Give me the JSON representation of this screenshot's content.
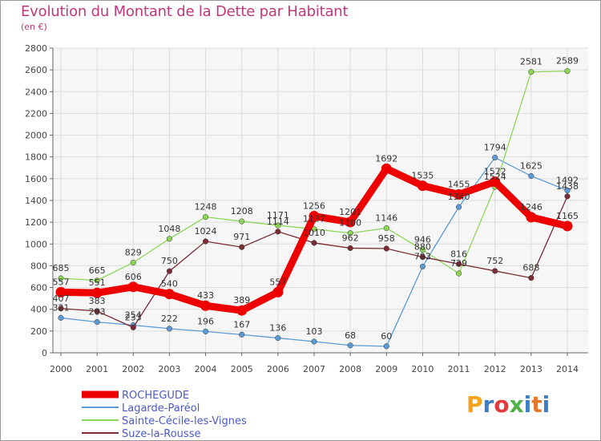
{
  "title": "Evolution du Montant de la Dette par Habitant",
  "subtitle": "(en €)",
  "logo_text": "Proxiti",
  "logo_colors": [
    "#f7a21c",
    "#3c7fc6",
    "#e23b3b",
    "#52b24a",
    "#3c7fc6",
    "#e5762c",
    "#3c7fc6"
  ],
  "chart_data": {
    "type": "line",
    "title": "Evolution du Montant de la Dette par Habitant",
    "ylabel": "(en €)",
    "xlabel": "",
    "ylim": [
      0,
      2800
    ],
    "yticks": [
      0,
      200,
      400,
      600,
      800,
      1000,
      1200,
      1400,
      1600,
      1800,
      2000,
      2200,
      2400,
      2600,
      2800
    ],
    "grid": true,
    "legend_position": "bottom-left",
    "x": [
      "2000",
      "2001",
      "2002",
      "2003",
      "2004",
      "2005",
      "2006",
      "2007",
      "2008",
      "2009",
      "2010",
      "2011",
      "2012",
      "2013",
      "2014"
    ],
    "series": [
      {
        "name": "Lagarde-Paréol",
        "color": "#5b9bd5",
        "values": [
          321,
          283,
          254,
          222,
          196,
          167,
          136,
          103,
          68,
          60,
          793,
          1340,
          1794,
          1625,
          1492
        ],
        "labels": [
          "321",
          "283",
          "254",
          "222",
          "196",
          "167",
          "136",
          "103",
          "68",
          "60",
          "793",
          "1340",
          "1794",
          "1625",
          "1492"
        ]
      },
      {
        "name": "Sainte-Cécile-les-Vignes",
        "color": "#8ed65a",
        "values": [
          685,
          665,
          829,
          1048,
          1248,
          1208,
          1171,
          1137,
          1100,
          1146,
          946,
          729,
          1524,
          2581,
          2589
        ],
        "labels": [
          "685",
          "665",
          "829",
          "1048",
          "1248",
          "1208",
          "1171",
          "1137",
          "1100",
          "1146",
          "946",
          "729",
          "1524",
          "2581",
          "2589"
        ]
      },
      {
        "name": "Suze-la-Rousse",
        "color": "#7a2b33",
        "values": [
          407,
          383,
          233,
          750,
          1024,
          971,
          1114,
          1010,
          962,
          958,
          880,
          816,
          752,
          688,
          1438
        ],
        "labels": [
          "407",
          "383",
          "233",
          "750",
          "1024",
          "971",
          "1114",
          "1010",
          "962",
          "958",
          "880",
          "816",
          "752",
          "688",
          "1438"
        ]
      },
      {
        "name": "ROCHEGUDE",
        "color": "#ee0000",
        "highlight": true,
        "values": [
          557,
          551,
          606,
          540,
          433,
          389,
          557,
          1256,
          1201,
          1692,
          1535,
          1455,
          1572,
          1246,
          1165
        ],
        "labels": [
          "557",
          "551",
          "606",
          "540",
          "433",
          "389",
          "557",
          "1256",
          "1201",
          "1692",
          "1535",
          "1455",
          "1572",
          "1246",
          "1165"
        ]
      }
    ],
    "legend": [
      {
        "name": "ROCHEGUDE",
        "color": "#ee0000",
        "thick": true
      },
      {
        "name": "Lagarde-Paréol",
        "color": "#5b9bd5",
        "thick": false
      },
      {
        "name": "Sainte-Cécile-les-Vignes",
        "color": "#8ed65a",
        "thick": false
      },
      {
        "name": "Suze-la-Rousse",
        "color": "#7a2b33",
        "thick": false
      }
    ]
  }
}
